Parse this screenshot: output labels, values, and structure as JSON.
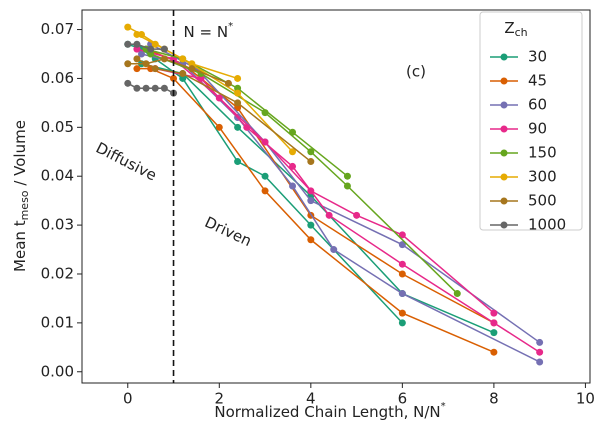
{
  "chart_data": {
    "type": "line",
    "y_label": {
      "main": "Mean t",
      "sub": "meso",
      "rest": " / Volume"
    },
    "x_label": {
      "main": "Normalized Chain Length, N/N",
      "sup": "*"
    },
    "annotations": {
      "threshold": {
        "text": "N = N",
        "sup": "*",
        "x": 1
      },
      "panel": "(c)",
      "left_region": "Diffusive",
      "right_region": "Driven"
    },
    "legend_title": {
      "main": "Z",
      "sub": "ch"
    },
    "legend_position": "upper right",
    "xlim": [
      -1,
      10.1
    ],
    "ylim": [
      -0.0023,
      0.074
    ],
    "xticks": [
      0,
      2,
      4,
      6,
      8,
      10
    ],
    "yticks": [
      {
        "value": 0,
        "label": "0.00"
      },
      {
        "value": 0.01,
        "label": "0.01"
      },
      {
        "value": 0.02,
        "label": "0.02"
      },
      {
        "value": 0.03,
        "label": "0.03"
      },
      {
        "value": 0.04,
        "label": "0.04"
      },
      {
        "value": 0.05,
        "label": "0.05"
      },
      {
        "value": 0.06,
        "label": "0.06"
      },
      {
        "value": 0.07,
        "label": "0.07"
      }
    ],
    "series": [
      {
        "name": "30",
        "color": "#1b9e77",
        "lines": [
          {
            "x": [
              0,
              0.3,
              0.6,
              1.2,
              2.4,
              3,
              4,
              6
            ],
            "y": [
              0.067,
              0.066,
              0.064,
              0.06,
              0.043,
              0.04,
              0.03,
              0.01
            ]
          },
          {
            "x": [
              0.3,
              1.2,
              2.4,
              4,
              6,
              8
            ],
            "y": [
              0.063,
              0.061,
              0.05,
              0.036,
              0.016,
              0.008
            ]
          }
        ]
      },
      {
        "name": "45",
        "color": "#d95f02",
        "lines": [
          {
            "x": [
              0.2,
              0.5,
              1,
              2,
              3,
              4,
              6,
              8
            ],
            "y": [
              0.062,
              0.062,
              0.06,
              0.05,
              0.037,
              0.027,
              0.012,
              0.004
            ]
          },
          {
            "x": [
              0.4,
              1.2,
              2.4,
              4,
              6,
              8
            ],
            "y": [
              0.066,
              0.063,
              0.054,
              0.032,
              0.02,
              0.01
            ]
          }
        ]
      },
      {
        "name": "60",
        "color": "#7570b3",
        "lines": [
          {
            "x": [
              0.3,
              1.2,
              2.4,
              3.6,
              4.5,
              6,
              9
            ],
            "y": [
              0.065,
              0.063,
              0.052,
              0.038,
              0.025,
              0.016,
              0.002
            ]
          },
          {
            "x": [
              0.5,
              1.5,
              3,
              4,
              6,
              9
            ],
            "y": [
              0.067,
              0.062,
              0.047,
              0.035,
              0.026,
              0.006
            ]
          }
        ]
      },
      {
        "name": "90",
        "color": "#e7298a",
        "lines": [
          {
            "x": [
              0.2,
              1,
              2,
              3,
              4,
              5,
              6,
              8
            ],
            "y": [
              0.066,
              0.064,
              0.056,
              0.047,
              0.037,
              0.032,
              0.028,
              0.012
            ]
          },
          {
            "x": [
              0.6,
              1.6,
              2.6,
              3.6,
              4.4,
              6,
              8,
              9
            ],
            "y": [
              0.062,
              0.06,
              0.05,
              0.042,
              0.032,
              0.022,
              0.01,
              0.004
            ]
          }
        ]
      },
      {
        "name": "150",
        "color": "#66a61e",
        "lines": [
          {
            "x": [
              0.4,
              1.2,
              2.4,
              3.6,
              4.8
            ],
            "y": [
              0.066,
              0.064,
              0.058,
              0.049,
              0.04
            ]
          },
          {
            "x": [
              0.5,
              1.6,
              3,
              4,
              4.8,
              7.2
            ],
            "y": [
              0.065,
              0.061,
              0.053,
              0.045,
              0.038,
              0.016
            ]
          }
        ]
      },
      {
        "name": "300",
        "color": "#e6ab02",
        "lines": [
          {
            "x": [
              0,
              0.3,
              0.8,
              1.2,
              2.4,
              3.6
            ],
            "y": [
              0.0705,
              0.069,
              0.066,
              0.064,
              0.057,
              0.045
            ]
          },
          {
            "x": [
              0.2,
              0.6,
              1.4,
              2.4
            ],
            "y": [
              0.069,
              0.067,
              0.063,
              0.06
            ]
          }
        ]
      },
      {
        "name": "500",
        "color": "#a6761d",
        "lines": [
          {
            "x": [
              0,
              0.4,
              0.8,
              1.4,
              2.2
            ],
            "y": [
              0.063,
              0.063,
              0.064,
              0.062,
              0.059
            ]
          },
          {
            "x": [
              0.2,
              0.6,
              1.2,
              2.4,
              4
            ],
            "y": [
              0.064,
              0.062,
              0.061,
              0.055,
              0.043
            ]
          }
        ]
      },
      {
        "name": "1000",
        "color": "#666666",
        "lines": [
          {
            "x": [
              0,
              0.2,
              0.4,
              0.6,
              0.8,
              1
            ],
            "y": [
              0.059,
              0.058,
              0.058,
              0.058,
              0.058,
              0.057
            ]
          },
          {
            "x": [
              0,
              0.2,
              0.5,
              0.8
            ],
            "y": [
              0.067,
              0.067,
              0.066,
              0.066
            ]
          }
        ]
      }
    ]
  }
}
